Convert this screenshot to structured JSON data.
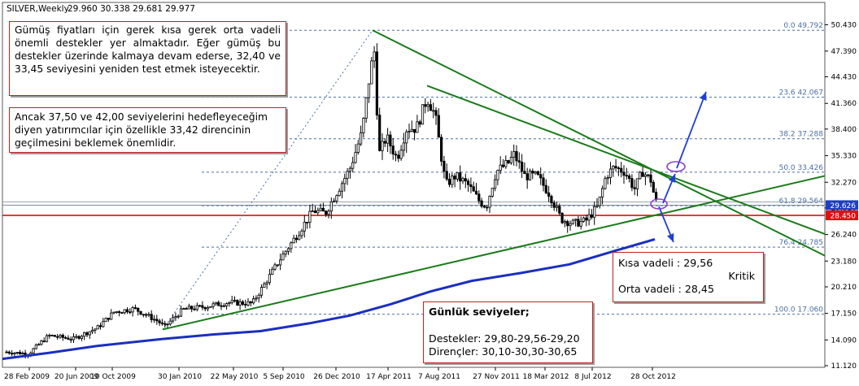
{
  "header": {
    "symbol": "SILVER,Weekly",
    "ohlc": "29.960 30.338 29.681 29.977"
  },
  "annotations": {
    "box1": "Gümüş fiyatları için gerek kısa gerek orta vadeli önemli destekler yer almaktadır. Eğer gümüş bu destekler üzerinde kalmaya devam ederse, 32,40 ve 33,45 seviyesini yeniden test etmek isteyecektir.",
    "box2": "Ancak 37,50 ve 42,00 seviyelerini hedefleyeceğim diyen yatırımcılar için özellikle 33,42 direncinin geçilmesini beklemek önemlidir.",
    "box3": {
      "line1": "Kısa vadeli : 29,56",
      "crit": "Kritik",
      "line2": "Orta vadeli : 28,45"
    },
    "box4": {
      "title": "Günlük seviyeler;",
      "support": "Destekler: 29,80-29,56-29,20",
      "resistance": "Dirençler: 30,10-30,30-30,65"
    }
  },
  "chart_data": {
    "type": "candlestick",
    "title": "SILVER,Weekly",
    "y_ticks": [
      "50.430",
      "47.390",
      "44.430",
      "41.360",
      "38.400",
      "35.330",
      "32.270",
      "29.310",
      "26.240",
      "23.180",
      "20.210",
      "17.150",
      "14.090",
      "11.120"
    ],
    "y_range": [
      11.12,
      51.5
    ],
    "x_ticks": [
      "28 Feb 2009",
      "20 Jun 2009",
      "10 Oct 2009",
      "30 Jan 2010",
      "22 May 2010",
      "5 Sep 2010",
      "26 Dec 2010",
      "17 Apr 2011",
      "7 Aug 2011",
      "27 Nov 2011",
      "18 Mar 2012",
      "8 Jul 2012",
      "28 Oct 2012"
    ],
    "price_labels": [
      {
        "text": "29.626",
        "value": 29.626,
        "color": "#1f3fbf"
      },
      {
        "text": "28.450",
        "value": 28.45,
        "color": "#e01010"
      }
    ],
    "fibonacci": [
      {
        "label": "0.0 49.792",
        "value": 49.792
      },
      {
        "label": "23.6 42.067",
        "value": 42.067
      },
      {
        "label": "38.2 37.288",
        "value": 37.288
      },
      {
        "label": "50.0 33.426",
        "value": 33.426
      },
      {
        "label": "61.8 29.564",
        "value": 29.564
      },
      {
        "label": "76.4 24.785",
        "value": 24.785
      },
      {
        "label": "100.0 17.060",
        "value": 17.06
      }
    ],
    "horizontal_lines": [
      {
        "value": 28.45,
        "color": "#e01010"
      },
      {
        "value": 29.626,
        "color": "#7f8c9a"
      },
      {
        "value": 30.0,
        "color": "#9aa4ae"
      }
    ],
    "trendlines": [
      {
        "color": "#1a7a1a",
        "from": {
          "x": "17 Apr 2011",
          "y": 49.79
        },
        "to": {
          "x": "right",
          "y": 23.8
        }
      },
      {
        "color": "#1a7a1a",
        "from": {
          "x": "7 Aug 2011",
          "y": 43.4
        },
        "to": {
          "x": "right",
          "y": 26.3
        }
      },
      {
        "color": "#1a7a1a",
        "from": {
          "x": "30 Jan 2010",
          "y": 15.3
        },
        "to": {
          "x": "right",
          "y": 33.0
        }
      }
    ],
    "moving_average_color": "#1a2fbf",
    "candle_colors": {
      "up": "#ffffff",
      "down": "#000000"
    },
    "grid": false
  }
}
